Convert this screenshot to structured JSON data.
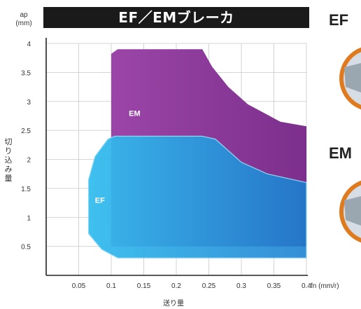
{
  "chart_data": {
    "type": "area",
    "title": "EF／EMブレーカ",
    "xlabel": "送り量",
    "x_unit": "fn (mm/r)",
    "ylabel": "切り込み量",
    "y_unit": "ap\n(mm)",
    "xlim": [
      0,
      0.4
    ],
    "ylim": [
      0,
      4
    ],
    "x_ticks": [
      "0.05",
      "0.1",
      "0.15",
      "0.2",
      "0.25",
      "0.3",
      "0.35",
      "0.4"
    ],
    "y_ticks": [
      "0.5",
      "1",
      "1.5",
      "2",
      "2.5",
      "3",
      "3.5",
      "4"
    ],
    "grid": true,
    "series": [
      {
        "name": "EM",
        "color": "#8e3a9a",
        "polygon": [
          [
            0.1,
            0.5
          ],
          [
            0.4,
            0.5
          ],
          [
            0.4,
            2.57
          ],
          [
            0.36,
            2.65
          ],
          [
            0.31,
            2.95
          ],
          [
            0.28,
            3.25
          ],
          [
            0.255,
            3.6
          ],
          [
            0.24,
            3.9
          ],
          [
            0.11,
            3.9
          ],
          [
            0.1,
            3.82
          ]
        ]
      },
      {
        "name": "EF",
        "color": "#1eaee6",
        "polygon": [
          [
            0.065,
            0.72
          ],
          [
            0.065,
            1.65
          ],
          [
            0.075,
            2.05
          ],
          [
            0.095,
            2.35
          ],
          [
            0.105,
            2.4
          ],
          [
            0.24,
            2.4
          ],
          [
            0.26,
            2.35
          ],
          [
            0.3,
            1.95
          ],
          [
            0.34,
            1.75
          ],
          [
            0.4,
            1.6
          ],
          [
            0.4,
            0.3
          ],
          [
            0.11,
            0.3
          ],
          [
            0.085,
            0.45
          ]
        ]
      }
    ]
  },
  "side_labels": {
    "ef": "EF",
    "em": "EM"
  },
  "colors": {
    "title_bar": "#1a1a1a",
    "photo_ring": "#e07a1f"
  }
}
